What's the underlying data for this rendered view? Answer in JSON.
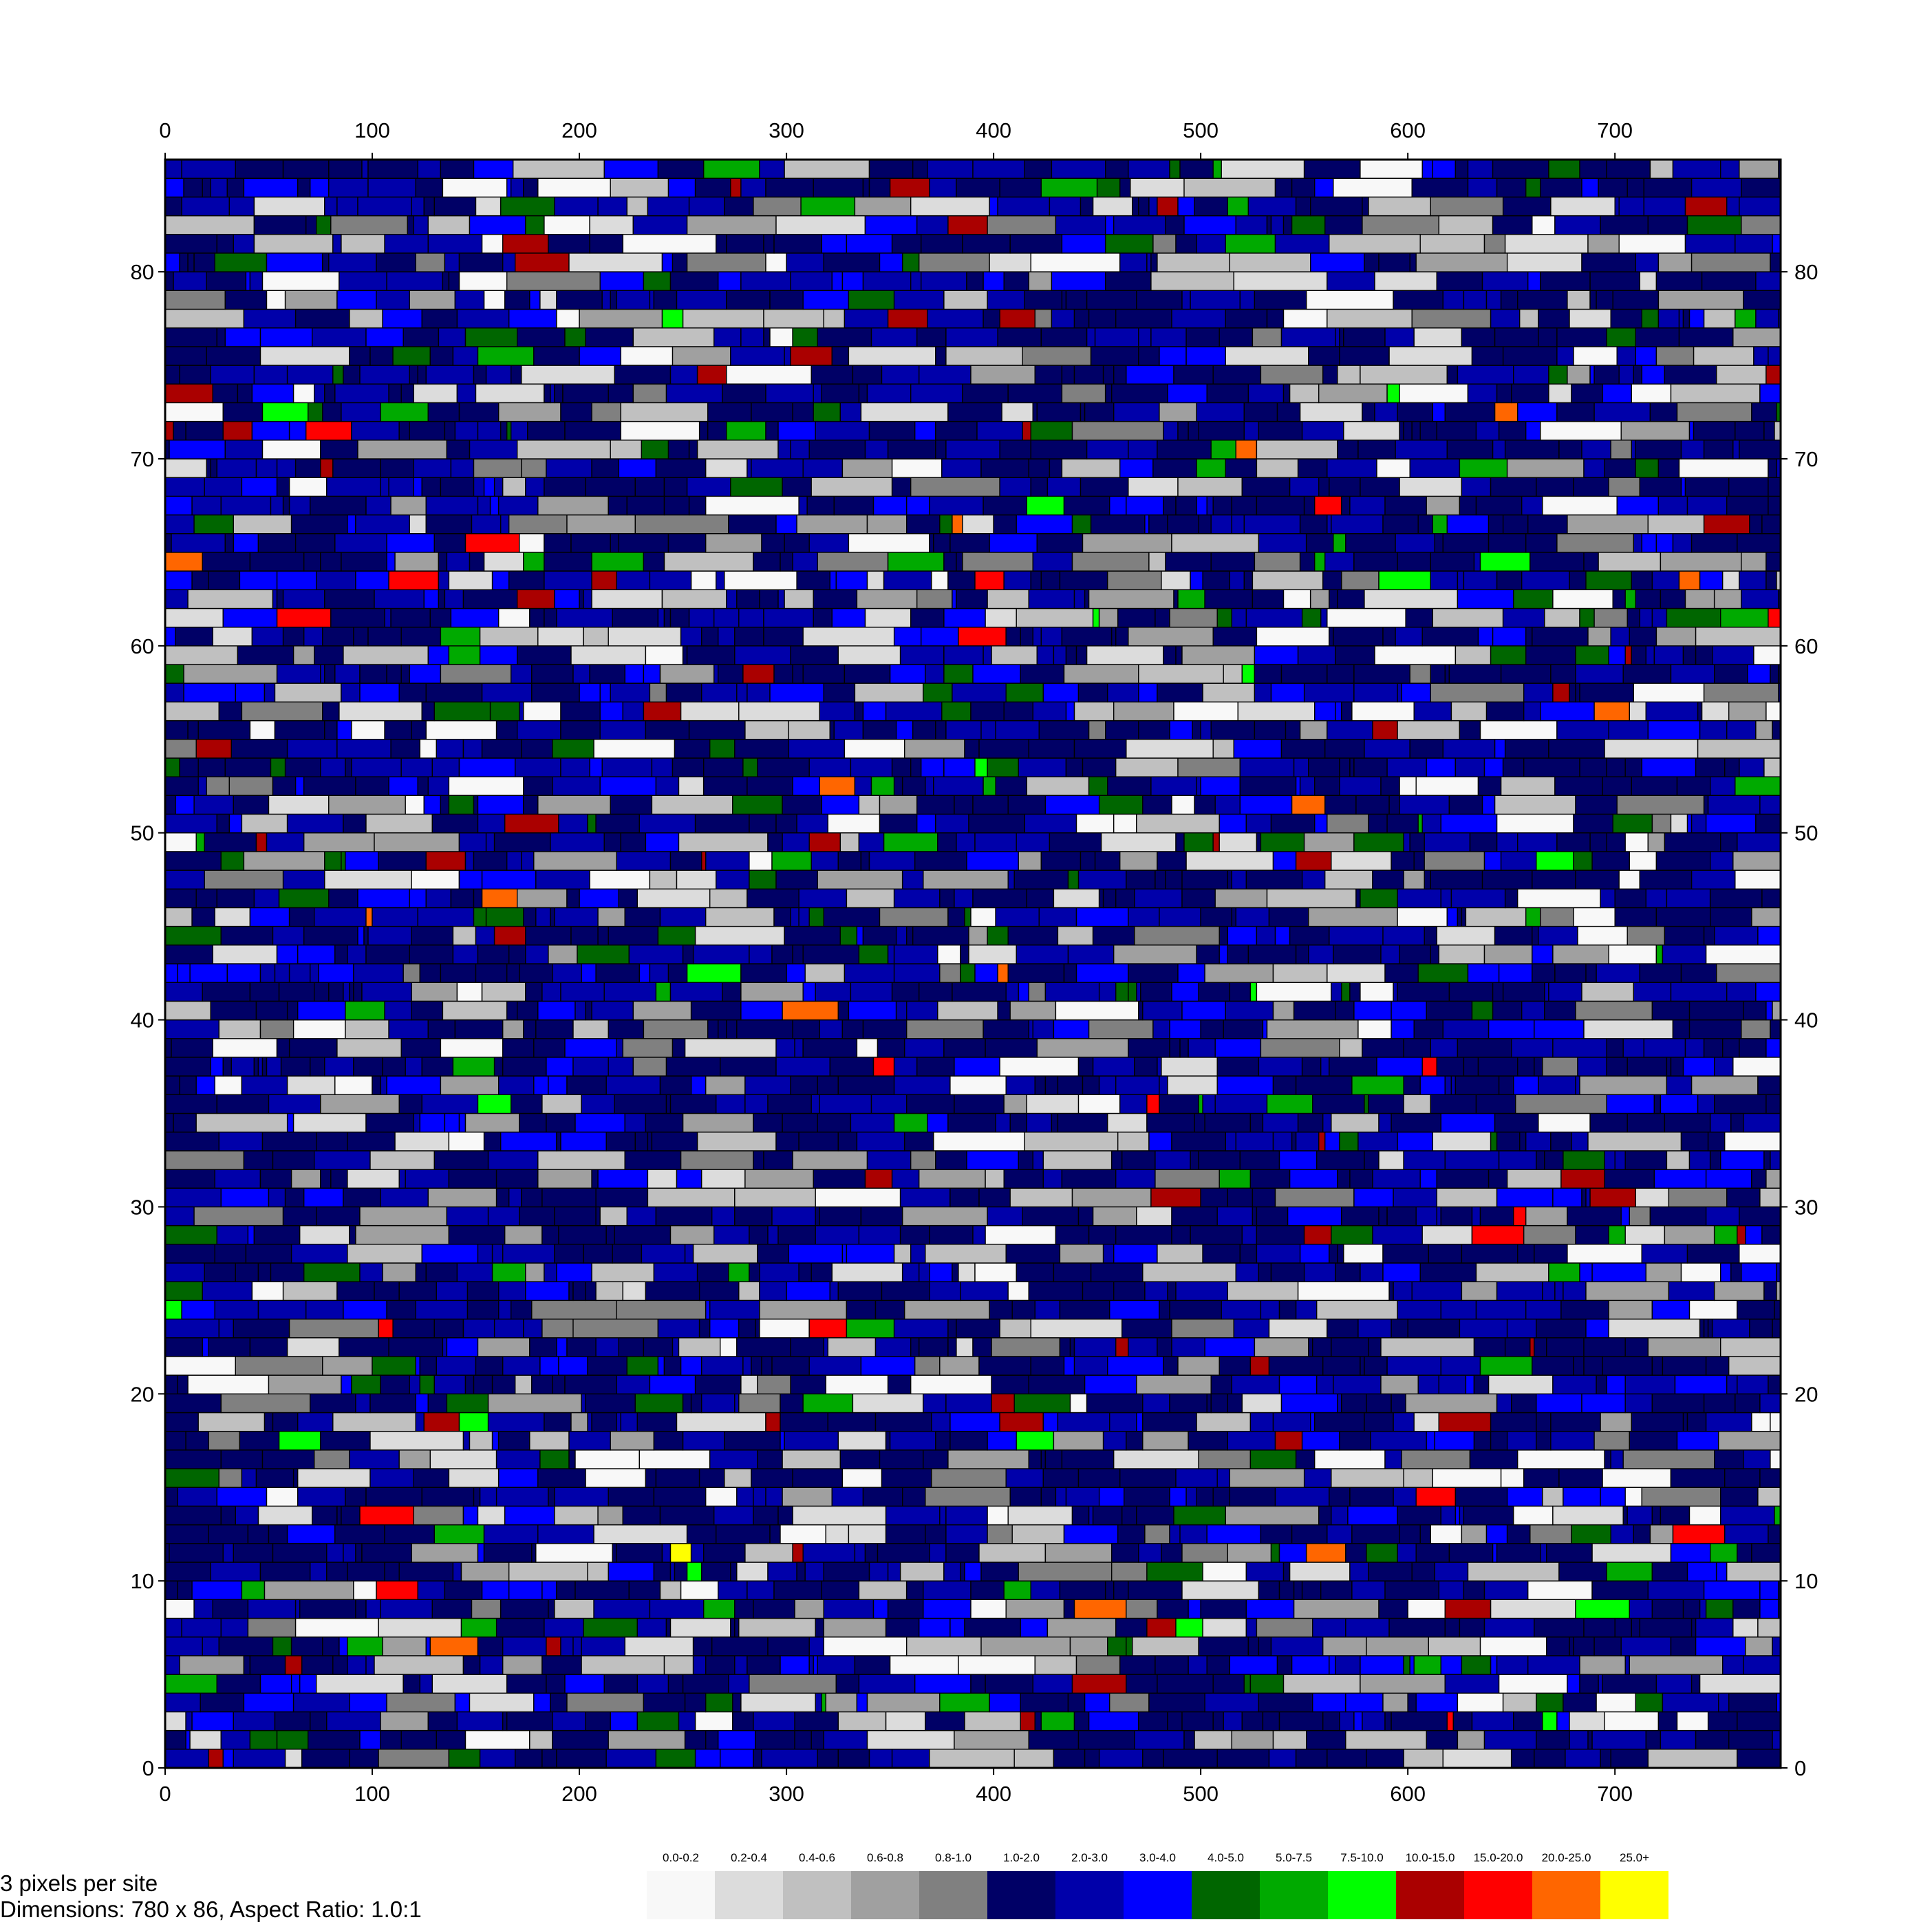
{
  "chart_data": {
    "type": "heatmap",
    "title": "",
    "xlabel": "",
    "ylabel": "",
    "xlim": [
      0,
      780
    ],
    "ylim": [
      0,
      86
    ],
    "x_ticks": [
      0,
      100,
      200,
      300,
      400,
      500,
      600,
      700
    ],
    "y_ticks": [
      0,
      10,
      20,
      30,
      40,
      50,
      60,
      70,
      80
    ],
    "grid": false,
    "legend_position": "bottom",
    "dominant_bins": [
      "1.0-2.0",
      "2.0-3.0",
      "3.0-4.0"
    ],
    "legend": [
      {
        "label": "0.0-0.2",
        "color": "#f8f8f8"
      },
      {
        "label": "0.2-0.4",
        "color": "#dcdcdc"
      },
      {
        "label": "0.4-0.6",
        "color": "#c0c0c0"
      },
      {
        "label": "0.6-0.8",
        "color": "#a0a0a0"
      },
      {
        "label": "0.8-1.0",
        "color": "#808080"
      },
      {
        "label": "1.0-2.0",
        "color": "#000066"
      },
      {
        "label": "2.0-3.0",
        "color": "#0000aa"
      },
      {
        "label": "3.0-4.0",
        "color": "#0000ff"
      },
      {
        "label": "4.0-5.0",
        "color": "#006600"
      },
      {
        "label": "5.0-7.5",
        "color": "#00aa00"
      },
      {
        "label": "7.5-10.0",
        "color": "#00ff00"
      },
      {
        "label": "10.0-15.0",
        "color": "#aa0000"
      },
      {
        "label": "15.0-20.0",
        "color": "#ff0000"
      },
      {
        "label": "20.0-25.0",
        "color": "#ff6600"
      },
      {
        "label": "25.0+",
        "color": "#ffff00"
      }
    ]
  },
  "info": {
    "line1": "3  pixels  per  site",
    "line2": "Dimensions:  780  x  86,  Aspect  Ratio:  1.0:1"
  }
}
